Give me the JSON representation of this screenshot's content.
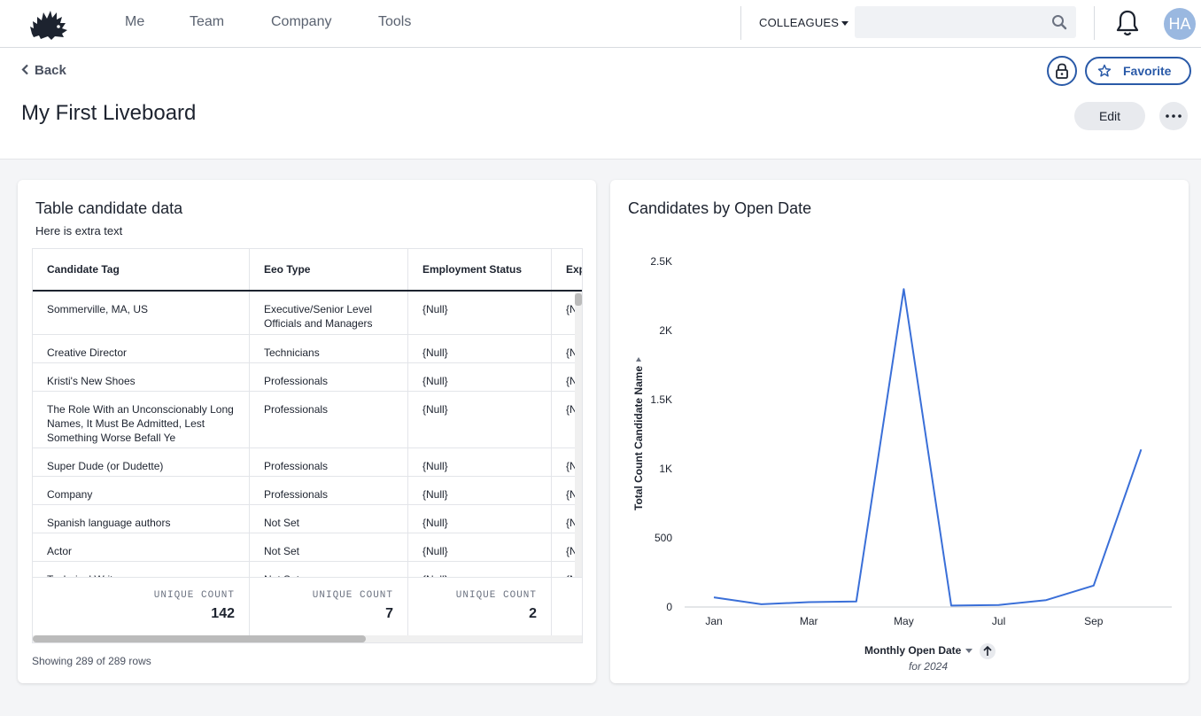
{
  "topbar": {
    "nav": [
      "Me",
      "Team",
      "Company",
      "Tools"
    ],
    "colleagues_label": "COLLEAGUES",
    "search_placeholder": "",
    "avatar_initials": "HA"
  },
  "header": {
    "back_label": "Back",
    "title": "My First Liveboard",
    "favorite_label": "Favorite",
    "edit_label": "Edit"
  },
  "table_card": {
    "title": "Table candidate data",
    "subtitle": "Here is extra text",
    "columns": [
      "Candidate Tag",
      "Eeo Type",
      "Employment Status",
      "Exp"
    ],
    "rows": [
      [
        "Sommerville, MA, US",
        "Executive/Senior Level Officials and Managers",
        "{Null}",
        "{N"
      ],
      [
        "Creative Director",
        "Technicians",
        "{Null}",
        "{N"
      ],
      [
        "Kristi's New Shoes",
        "Professionals",
        "{Null}",
        "{N"
      ],
      [
        "The Role With an Unconscionably Long Names, It Must Be Admitted, Lest Something Worse Befall Ye",
        "Professionals",
        "{Null}",
        "{N"
      ],
      [
        "Super Dude (or Dudette)",
        "Professionals",
        "{Null}",
        "{N"
      ],
      [
        "Company",
        "Professionals",
        "{Null}",
        "{N"
      ],
      [
        "Spanish language authors",
        "Not Set",
        "{Null}",
        "{N"
      ],
      [
        "Actor",
        "Not Set",
        "{Null}",
        "{N"
      ],
      [
        "Technical Writer",
        "Not Set",
        "{Null}",
        "{N"
      ]
    ],
    "footer": [
      {
        "label": "UNIQUE COUNT",
        "value": "142"
      },
      {
        "label": "UNIQUE COUNT",
        "value": "7"
      },
      {
        "label": "UNIQUE COUNT",
        "value": "2"
      }
    ],
    "rows_info": "Showing 289 of 289 rows"
  },
  "chart_card": {
    "title": "Candidates by Open Date"
  },
  "chart_data": {
    "type": "line",
    "title": "Candidates by Open Date",
    "xlabel": "Monthly Open Date",
    "xlabel_sub": "for 2024",
    "ylabel": "Total Count Candidate Name",
    "x": [
      "Jan",
      "Feb",
      "Mar",
      "Apr",
      "May",
      "Jun",
      "Jul",
      "Aug",
      "Sep",
      "Oct"
    ],
    "x_tick_labels": [
      "Jan",
      "Mar",
      "May",
      "Jul",
      "Sep"
    ],
    "y_ticks": [
      0,
      500,
      1000,
      1500,
      2000,
      2500
    ],
    "y_tick_labels": [
      "0",
      "500",
      "1K",
      "1.5K",
      "2K",
      "2.5K"
    ],
    "ylim": [
      0,
      2500
    ],
    "series": [
      {
        "values": [
          70,
          20,
          35,
          40,
          2300,
          10,
          15,
          50,
          155,
          1140
        ]
      }
    ],
    "line_color": "#3a6fd8",
    "grid": false
  }
}
